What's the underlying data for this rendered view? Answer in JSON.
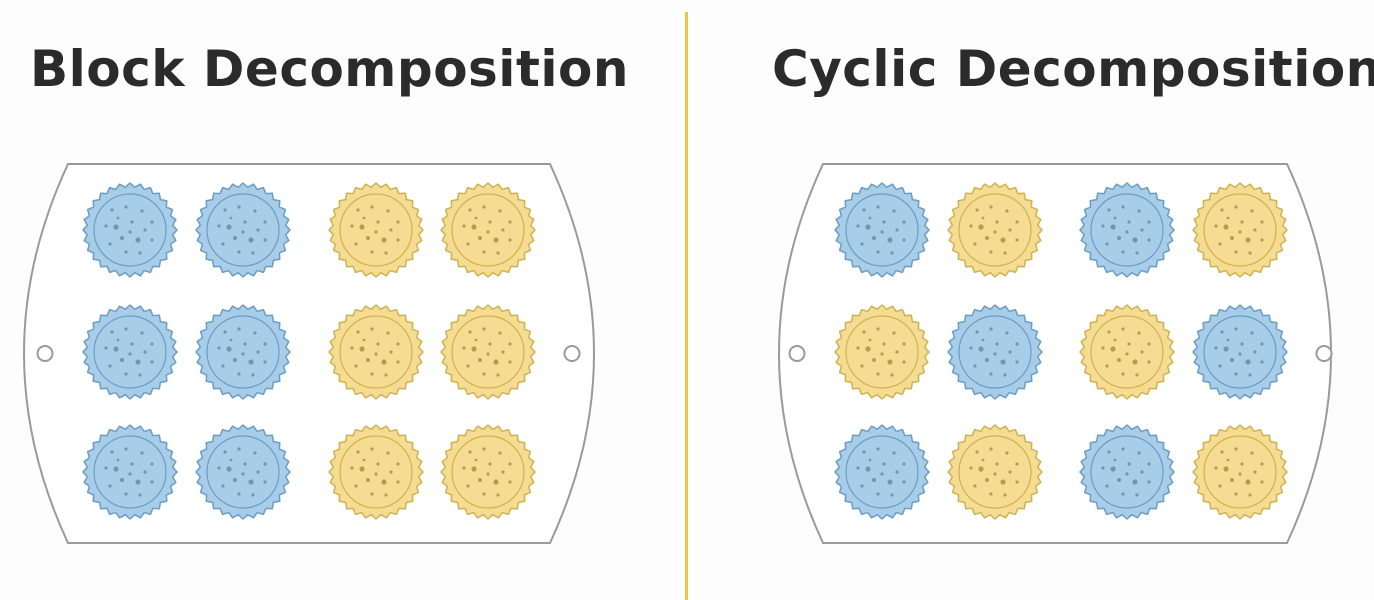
{
  "titles": {
    "left": "Block Decomposition",
    "right": "Cyclic Decomposition"
  },
  "colors": {
    "blue_fill": "#a8cde8",
    "blue_stroke": "#6a9cc4",
    "blue_dot": "#6f96b4",
    "yellow_fill": "#f5dc92",
    "yellow_stroke": "#cdb350",
    "yellow_dot": "#b89d4c",
    "tray_stroke": "#9a9a9a",
    "divider": "#e8c84a"
  },
  "trays": [
    {
      "name": "block",
      "grid": [
        [
          "blue",
          "blue",
          "yellow",
          "yellow"
        ],
        [
          "blue",
          "blue",
          "yellow",
          "yellow"
        ],
        [
          "blue",
          "blue",
          "yellow",
          "yellow"
        ]
      ]
    },
    {
      "name": "cyclic",
      "grid": [
        [
          "blue",
          "yellow",
          "blue",
          "yellow"
        ],
        [
          "yellow",
          "blue",
          "yellow",
          "blue"
        ],
        [
          "blue",
          "yellow",
          "blue",
          "yellow"
        ]
      ]
    }
  ]
}
